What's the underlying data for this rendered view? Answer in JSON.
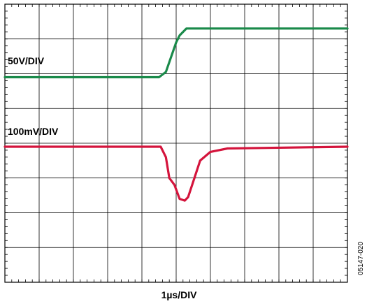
{
  "chart_data": {
    "type": "line",
    "grid": true,
    "x_divisions": 10,
    "y_divisions": 8,
    "time_scale_label": "1µs/DIV",
    "figure_id": "05147-020",
    "x_unit": "µs",
    "xlim": [
      0,
      10
    ],
    "series": [
      {
        "name": "50V/DIV",
        "color": "#1a8a4a",
        "points": [
          [
            0,
            5.9
          ],
          [
            4.5,
            5.9
          ],
          [
            4.7,
            6.05
          ],
          [
            5.0,
            6.9
          ],
          [
            5.1,
            7.1
          ],
          [
            5.3,
            7.3
          ],
          [
            10,
            7.3
          ]
        ]
      },
      {
        "name": "100mV/DIV",
        "color": "#d4143c",
        "points": [
          [
            0,
            3.9
          ],
          [
            4.55,
            3.9
          ],
          [
            4.7,
            3.6
          ],
          [
            4.8,
            3.0
          ],
          [
            4.95,
            2.8
          ],
          [
            5.1,
            2.4
          ],
          [
            5.25,
            2.35
          ],
          [
            5.35,
            2.45
          ],
          [
            5.5,
            2.9
          ],
          [
            5.7,
            3.5
          ],
          [
            6.0,
            3.75
          ],
          [
            6.5,
            3.85
          ],
          [
            10,
            3.9
          ]
        ]
      }
    ]
  }
}
